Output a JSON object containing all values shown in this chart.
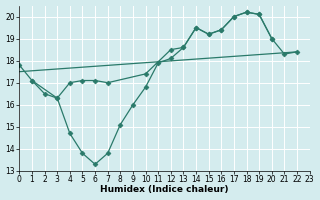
{
  "series1_x": [
    0,
    1,
    2,
    3,
    4,
    5,
    6,
    7,
    8,
    9,
    10,
    11,
    12,
    13,
    14,
    15,
    16,
    17,
    18,
    19,
    20,
    21,
    22
  ],
  "series1_y": [
    17.8,
    17.1,
    16.5,
    16.3,
    14.7,
    13.8,
    13.3,
    13.8,
    15.1,
    16.0,
    16.8,
    17.9,
    18.1,
    18.6,
    19.5,
    19.2,
    19.4,
    20.0,
    20.2,
    20.1,
    19.0,
    18.3,
    18.4
  ],
  "series2_x": [
    1,
    3,
    4,
    5,
    6,
    7,
    10,
    12,
    13,
    14,
    15,
    16,
    17,
    18,
    19,
    20
  ],
  "series2_y": [
    17.1,
    16.3,
    17.0,
    17.1,
    17.1,
    17.0,
    17.4,
    18.5,
    18.6,
    19.5,
    19.2,
    19.4,
    20.0,
    20.2,
    20.1,
    19.0
  ],
  "series3_x": [
    0,
    22
  ],
  "series3_y": [
    17.5,
    18.4
  ],
  "color": "#2a7a6a",
  "bg_color": "#d4ecee",
  "grid_color": "#b8d8da",
  "xlabel": "Humidex (Indice chaleur)",
  "xlim": [
    0,
    23
  ],
  "ylim": [
    13,
    20.5
  ],
  "yticks": [
    13,
    14,
    15,
    16,
    17,
    18,
    19,
    20
  ],
  "xticks": [
    0,
    1,
    2,
    3,
    4,
    5,
    6,
    7,
    8,
    9,
    10,
    11,
    12,
    13,
    14,
    15,
    16,
    17,
    18,
    19,
    20,
    21,
    22,
    23
  ],
  "marker": "D",
  "markersize": 2.5,
  "linewidth": 0.9,
  "label_fontsize": 6.5,
  "tick_fontsize": 5.5
}
